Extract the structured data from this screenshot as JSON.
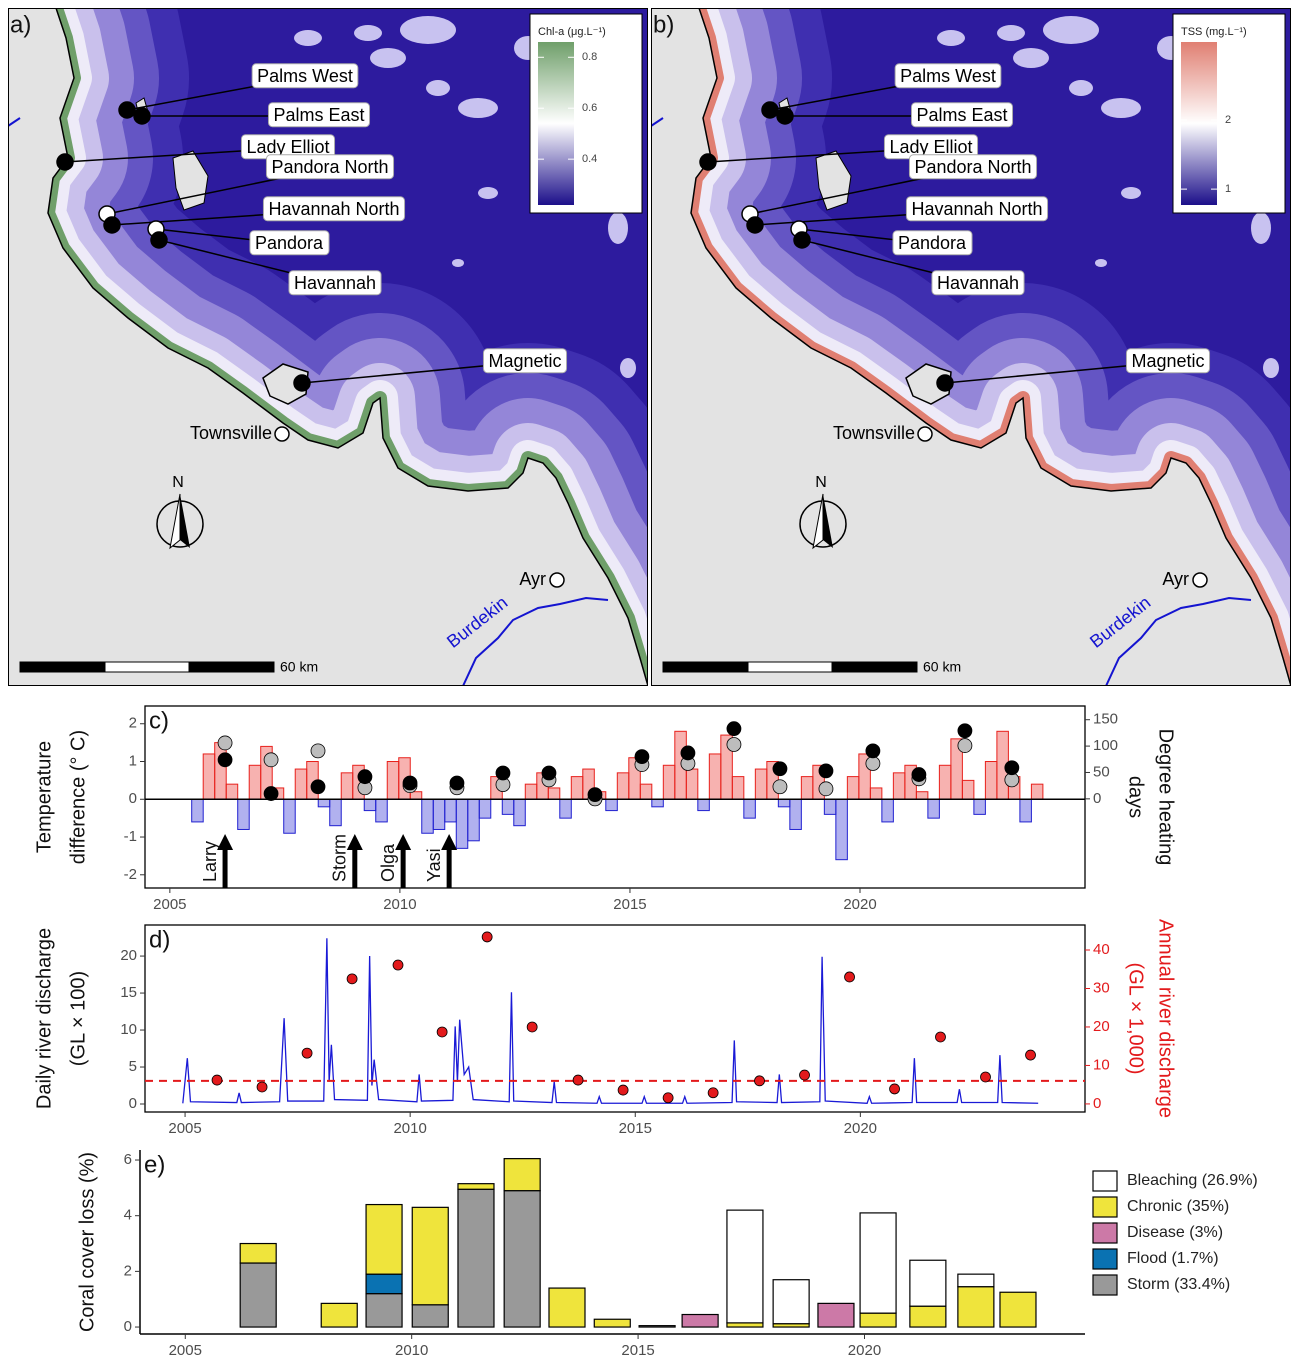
{
  "sites": [
    "Palms West",
    "Palms East",
    "Lady Elliot",
    "Pandora North",
    "Havannah North",
    "Pandora",
    "Havannah",
    "Magnetic"
  ],
  "towns": [
    "Townsville",
    "Ayr"
  ],
  "river": "Burdekin",
  "north": "N",
  "scale_label": "60 km",
  "maps": [
    {
      "label": "a)",
      "legend_title": "Chl-a (μg.L⁻¹)",
      "legend_ticks": [
        0.4,
        0.6,
        0.8
      ],
      "legend_lim": [
        0.22,
        0.86
      ],
      "colors": [
        "#6f9f6a",
        "#ffffff",
        "#1c0f8a"
      ]
    },
    {
      "label": "b)",
      "legend_title": "TSS (mg.L⁻¹)",
      "legend_ticks": [
        1,
        2
      ],
      "legend_lim": [
        0.77,
        3.13
      ],
      "colors": [
        "#e07f72",
        "#ffffff",
        "#1c0f8a"
      ]
    }
  ],
  "chart_data": [
    {
      "type": "area",
      "label": "c)",
      "box": true,
      "ylabel": [
        "Temperature",
        "difference (° C)"
      ],
      "y2label": [
        "Degree heating",
        "days"
      ],
      "xlim": [
        2004.46,
        2024.89
      ],
      "xticks": [
        2005,
        2010,
        2015,
        2020
      ],
      "ylim": [
        -2.35,
        2.47
      ],
      "yticks": [
        -2,
        -1,
        0,
        1,
        2
      ],
      "y2lim": [
        -169,
        176
      ],
      "y2ticks": [
        0,
        50,
        100,
        150
      ],
      "x": [
        2005.6,
        2005.85,
        2006.1,
        2006.35,
        2006.6,
        2006.85,
        2007.1,
        2007.35,
        2007.6,
        2007.85,
        2008.1,
        2008.35,
        2008.6,
        2008.85,
        2009.1,
        2009.35,
        2009.6,
        2009.85,
        2010.1,
        2010.35,
        2010.6,
        2010.85,
        2011.1,
        2011.35,
        2011.6,
        2011.85,
        2012.1,
        2012.35,
        2012.6,
        2012.85,
        2013.1,
        2013.35,
        2013.6,
        2013.85,
        2014.1,
        2014.35,
        2014.6,
        2014.85,
        2015.1,
        2015.35,
        2015.6,
        2015.85,
        2016.1,
        2016.35,
        2016.6,
        2016.85,
        2017.1,
        2017.35,
        2017.6,
        2017.85,
        2018.1,
        2018.35,
        2018.6,
        2018.85,
        2019.1,
        2019.35,
        2019.6,
        2019.85,
        2020.1,
        2020.35,
        2020.6,
        2020.85,
        2021.1,
        2021.35,
        2021.6,
        2021.85,
        2022.1,
        2022.35,
        2022.6,
        2022.85,
        2023.1,
        2023.35,
        2023.6,
        2023.85
      ],
      "series": [
        {
          "color": "#e8211c",
          "neg_color": "#2020d0",
          "values": [
            -0.6,
            1.2,
            1.5,
            0.4,
            -0.8,
            0.9,
            1.4,
            0.3,
            -0.9,
            0.8,
            1.0,
            -0.2,
            -0.7,
            0.7,
            0.9,
            -0.3,
            -0.6,
            1.0,
            1.1,
            0.2,
            -0.9,
            -0.8,
            -0.6,
            -1.3,
            -1.1,
            -0.5,
            0.6,
            -0.4,
            -0.7,
            0.4,
            0.7,
            0.3,
            -0.5,
            0.6,
            0.8,
            0.2,
            -0.3,
            0.7,
            1.1,
            0.4,
            -0.2,
            0.9,
            1.8,
            0.8,
            -0.3,
            1.2,
            1.7,
            0.6,
            -0.5,
            0.8,
            1.0,
            -0.2,
            -0.8,
            0.6,
            0.9,
            -0.4,
            -1.6,
            0.6,
            1.2,
            0.3,
            -0.6,
            0.7,
            0.9,
            0.2,
            -0.5,
            0.9,
            1.6,
            0.5,
            -0.4,
            1.0,
            1.8,
            0.6,
            -0.6,
            0.4
          ]
        },
        {
          "color": "#bdbdbd",
          "axis": "y2",
          "x": [
            2006.2,
            2007.2,
            2008.22,
            2009.24,
            2010.22,
            2011.24,
            2012.24,
            2013.24,
            2014.24,
            2015.26,
            2016.26,
            2017.26,
            2018.26,
            2019.26,
            2020.28,
            2021.28,
            2022.28,
            2023.3
          ],
          "values": [
            106,
            74,
            91,
            21,
            25,
            21,
            27,
            36,
            0,
            65,
            67,
            103,
            23,
            19,
            67,
            38,
            101,
            36
          ]
        },
        {
          "color": "#000000",
          "axis": "y2",
          "x": [
            2006.2,
            2007.2,
            2008.22,
            2009.24,
            2010.22,
            2011.24,
            2012.24,
            2013.24,
            2014.24,
            2015.26,
            2016.26,
            2017.26,
            2018.26,
            2019.26,
            2020.28,
            2021.28,
            2022.28,
            2023.3
          ],
          "values": [
            74,
            10,
            23,
            42,
            30,
            30,
            49,
            49,
            8,
            80,
            87,
            133,
            57,
            53,
            91,
            46,
            129,
            59
          ]
        }
      ],
      "annotations": [
        {
          "text": "Larry",
          "x": 2006.2
        },
        {
          "text": "Storm",
          "x": 2009.02
        },
        {
          "text": "Olga",
          "x": 2010.07
        },
        {
          "text": "Yasi",
          "x": 2011.07
        }
      ]
    },
    {
      "type": "line",
      "label": "d)",
      "box": true,
      "ylabel": [
        "Daily river discharge",
        "(GL × 100)"
      ],
      "y2label": [
        "Annual river discharge",
        "(GL × 1,000)"
      ],
      "y2_color": "#e31a1c",
      "xlim": [
        2004.11,
        2024.99
      ],
      "xticks": [
        2005,
        2010,
        2015,
        2020
      ],
      "ylim": [
        -1.08,
        24.2
      ],
      "yticks": [
        0,
        5,
        10,
        15,
        20
      ],
      "y2lim": [
        -2.1,
        46.5
      ],
      "y2ticks": [
        0,
        10,
        20,
        30,
        40
      ],
      "series": [
        {
          "color": "#1a1ad6",
          "x": [
            2004.95,
            2005.05,
            2005.12,
            2006.15,
            2006.2,
            2006.25,
            2007.1,
            2007.2,
            2007.28,
            2008.08,
            2008.15,
            2008.2,
            2008.25,
            2008.32,
            2009.05,
            2009.1,
            2009.15,
            2009.2,
            2009.3,
            2010.15,
            2010.2,
            2010.25,
            2010.95,
            2011.0,
            2011.05,
            2011.1,
            2011.2,
            2011.3,
            2011.4,
            2012.2,
            2012.25,
            2012.3,
            2013.15,
            2013.2,
            2013.25,
            2014.15,
            2014.2,
            2014.25,
            2015.15,
            2015.2,
            2015.25,
            2016.05,
            2016.1,
            2016.15,
            2017.15,
            2017.2,
            2017.25,
            2018.15,
            2018.2,
            2018.25,
            2019.1,
            2019.15,
            2019.22,
            2020.15,
            2020.2,
            2020.25,
            2021.15,
            2021.2,
            2021.25,
            2022.15,
            2022.2,
            2022.25,
            2023.05,
            2023.1,
            2023.15,
            2023.95
          ],
          "values": [
            0.1,
            6.2,
            0.3,
            0.2,
            1.5,
            0.2,
            0.3,
            11.6,
            0.4,
            0.4,
            22.4,
            3,
            8,
            0.6,
            0.5,
            20.0,
            2.5,
            6,
            0.6,
            0.3,
            4,
            0.4,
            0.5,
            10.5,
            3,
            11.4,
            4,
            5,
            0.6,
            0.3,
            15.1,
            0.4,
            0.2,
            3,
            0.2,
            0.1,
            1,
            0.1,
            0.1,
            1,
            0.1,
            0.1,
            1,
            0.1,
            0.2,
            8.6,
            0.3,
            0.2,
            4,
            0.2,
            0.3,
            19.9,
            0.4,
            0.1,
            1,
            0.1,
            0.2,
            6.2,
            0.2,
            0.2,
            2,
            0.2,
            0.2,
            6.6,
            0.2,
            0.1
          ]
        },
        {
          "color": "#e31a1c",
          "axis": "y2",
          "x": [
            2005.71,
            2006.71,
            2007.71,
            2008.71,
            2009.73,
            2010.71,
            2011.71,
            2012.71,
            2013.73,
            2014.73,
            2015.73,
            2016.73,
            2017.76,
            2018.76,
            2019.76,
            2020.76,
            2021.78,
            2022.78,
            2023.78
          ],
          "values": [
            6.2,
            4.4,
            13.2,
            32.5,
            36.1,
            18.7,
            43.4,
            20,
            6.2,
            3.6,
            1.6,
            2.9,
            6.0,
            7.5,
            33,
            3.9,
            17.4,
            7.0,
            12.7
          ]
        }
      ],
      "mean_line": {
        "value": 6.0,
        "axis": "y2",
        "color": "#e31a1c"
      }
    },
    {
      "type": "stacked_bar",
      "label": "e)",
      "box": false,
      "ylabel": [
        "Coral cover loss (%)"
      ],
      "xlim": [
        2004.0,
        2024.87
      ],
      "xticks": [
        2005,
        2010,
        2015,
        2020
      ],
      "ylim": [
        -0.25,
        6.36
      ],
      "yticks": [
        0,
        2,
        4,
        6
      ],
      "x": [
        2006.61,
        2008.4,
        2009.39,
        2010.41,
        2011.42,
        2012.44,
        2013.43,
        2014.43,
        2015.42,
        2016.37,
        2017.36,
        2018.38,
        2019.37,
        2020.3,
        2021.4,
        2022.46,
        2023.39
      ],
      "series": [
        {
          "name": "Bleaching (26.9%)",
          "color": "#ffffff",
          "values": [
            null,
            null,
            null,
            null,
            null,
            null,
            null,
            null,
            null,
            null,
            4.05,
            1.58,
            null,
            3.6,
            1.65,
            0.45,
            null
          ]
        },
        {
          "name": "Chronic (35%)",
          "color": "#efe43c",
          "values": [
            0.7,
            0.85,
            2.5,
            3.5,
            0.2,
            1.15,
            1.4,
            0.28,
            null,
            null,
            0.15,
            0.12,
            null,
            0.5,
            0.75,
            1.45,
            1.25
          ]
        },
        {
          "name": "Disease (3%)",
          "color": "#cc79a7",
          "values": [
            null,
            null,
            null,
            null,
            null,
            null,
            null,
            null,
            null,
            0.45,
            null,
            null,
            0.85,
            null,
            null,
            null,
            null
          ]
        },
        {
          "name": "Flood (1.7%)",
          "color": "#0a72b2",
          "values": [
            null,
            null,
            0.7,
            null,
            null,
            null,
            null,
            null,
            null,
            null,
            null,
            null,
            null,
            null,
            null,
            null,
            null
          ]
        },
        {
          "name": "Storm (33.4%)",
          "color": "#999999",
          "values": [
            2.3,
            null,
            1.2,
            0.8,
            4.95,
            4.9,
            null,
            null,
            0.05,
            null,
            null,
            null,
            null,
            null,
            null,
            null,
            null
          ]
        }
      ]
    }
  ]
}
